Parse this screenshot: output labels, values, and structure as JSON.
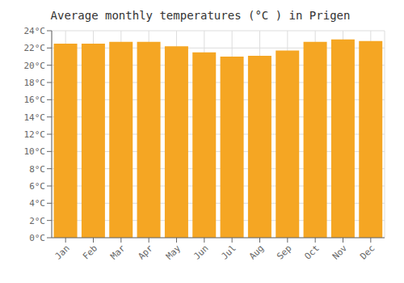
{
  "chart_data": {
    "type": "bar",
    "title": "Average monthly temperatures (°C ) in Prigen",
    "categories": [
      "Jan",
      "Feb",
      "Mar",
      "Apr",
      "May",
      "Jun",
      "Jul",
      "Aug",
      "Sep",
      "Oct",
      "Nov",
      "Dec"
    ],
    "values": [
      22.5,
      22.5,
      22.7,
      22.7,
      22.2,
      21.5,
      21.0,
      21.1,
      21.7,
      22.7,
      23.0,
      22.8
    ],
    "color": "#F5A623",
    "ylim": [
      0,
      24
    ],
    "yticks": [
      {
        "value": 0,
        "label": "0°C"
      },
      {
        "value": 2,
        "label": "2°C"
      },
      {
        "value": 4,
        "label": "4°C"
      },
      {
        "value": 6,
        "label": "6°C"
      },
      {
        "value": 8,
        "label": "8°C"
      },
      {
        "value": 10,
        "label": "10°C"
      },
      {
        "value": 12,
        "label": "12°C"
      },
      {
        "value": 14,
        "label": "14°C"
      },
      {
        "value": 16,
        "label": "16°C"
      },
      {
        "value": 18,
        "label": "18°C"
      },
      {
        "value": 20,
        "label": "20°C"
      },
      {
        "value": 22,
        "label": "22°C"
      },
      {
        "value": 24,
        "label": "24°C"
      }
    ],
    "grid": true
  }
}
